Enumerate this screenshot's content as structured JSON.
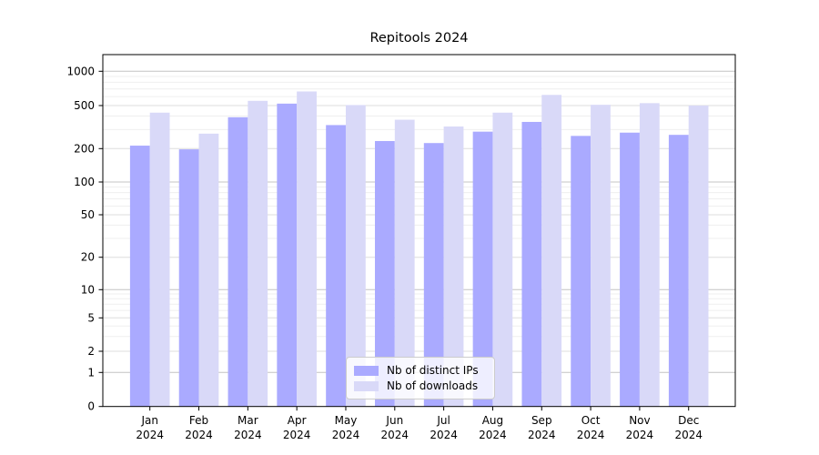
{
  "chart_data": {
    "type": "bar",
    "title": "Repitools 2024",
    "categories": [
      "Jan 2024",
      "Feb 2024",
      "Mar 2024",
      "Apr 2024",
      "May 2024",
      "Jun 2024",
      "Jul 2024",
      "Aug 2024",
      "Sep 2024",
      "Oct 2024",
      "Nov 2024",
      "Dec 2024"
    ],
    "series": [
      {
        "name": "Nb of distinct IPs",
        "color": "#aaaaff",
        "values": [
          213,
          197,
          390,
          520,
          330,
          235,
          225,
          287,
          353,
          262,
          281,
          268
        ]
      },
      {
        "name": "Nb of downloads",
        "color": "#d9d9f8",
        "values": [
          430,
          275,
          550,
          665,
          505,
          370,
          320,
          430,
          620,
          508,
          525,
          500
        ]
      }
    ],
    "xlabel": "",
    "ylabel": "",
    "yscale": "symlog",
    "yticks": [
      0,
      1,
      2,
      5,
      10,
      20,
      50,
      100,
      200,
      500,
      1000
    ],
    "ylim": [
      0,
      1400
    ],
    "grid": "on",
    "legend": {
      "position": "lower-center-inside",
      "items": [
        "Nb of distinct IPs",
        "Nb of downloads"
      ]
    }
  }
}
